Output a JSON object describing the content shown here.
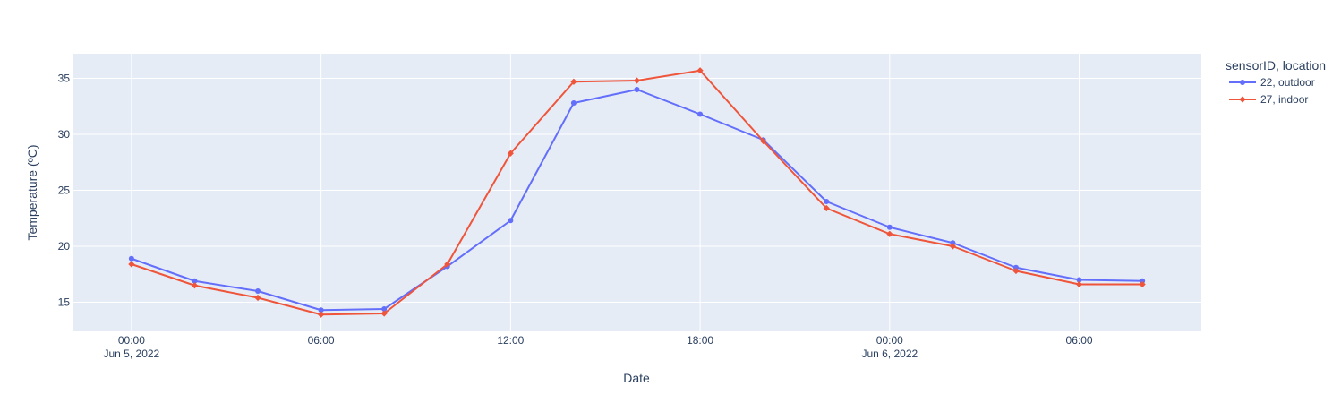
{
  "chart_data": {
    "type": "line",
    "xlabel": "Date",
    "ylabel": "Temperature (ºC)",
    "x": [
      "2022-06-05T00:00",
      "2022-06-05T02:00",
      "2022-06-05T04:00",
      "2022-06-05T06:00",
      "2022-06-05T08:00",
      "2022-06-05T10:00",
      "2022-06-05T12:00",
      "2022-06-05T14:00",
      "2022-06-05T16:00",
      "2022-06-05T18:00",
      "2022-06-05T20:00",
      "2022-06-05T22:00",
      "2022-06-06T00:00",
      "2022-06-06T02:00",
      "2022-06-06T04:00",
      "2022-06-06T06:00",
      "2022-06-06T08:00"
    ],
    "x_ticks": [
      {
        "value": "2022-06-05T00:00",
        "label": "00:00",
        "sublabel": "Jun 5, 2022"
      },
      {
        "value": "2022-06-05T06:00",
        "label": "06:00",
        "sublabel": ""
      },
      {
        "value": "2022-06-05T12:00",
        "label": "12:00",
        "sublabel": ""
      },
      {
        "value": "2022-06-05T18:00",
        "label": "18:00",
        "sublabel": ""
      },
      {
        "value": "2022-06-06T00:00",
        "label": "00:00",
        "sublabel": "Jun 6, 2022"
      },
      {
        "value": "2022-06-06T06:00",
        "label": "06:00",
        "sublabel": ""
      }
    ],
    "xlim": [
      "2022-06-04T22:08",
      "2022-06-06T09:52"
    ],
    "ylim": [
      12.4,
      37.2
    ],
    "y_ticks": [
      15,
      20,
      25,
      30,
      35
    ],
    "grid": true,
    "legend": {
      "title": "sensorID, location",
      "placement": "top-right outside"
    },
    "series": [
      {
        "name": "22, outdoor",
        "color": "#636efa",
        "marker": "circle",
        "values": [
          18.9,
          16.9,
          16.0,
          14.3,
          14.4,
          18.2,
          22.3,
          32.8,
          34.0,
          31.8,
          29.5,
          24.0,
          21.7,
          20.3,
          18.1,
          17.0,
          16.9
        ]
      },
      {
        "name": "27, indoor",
        "color": "#ef553b",
        "marker": "diamond",
        "values": [
          18.4,
          16.5,
          15.4,
          13.9,
          14.0,
          18.4,
          28.3,
          34.7,
          34.8,
          35.7,
          29.4,
          23.4,
          21.1,
          20.0,
          17.8,
          16.6,
          16.6
        ]
      }
    ]
  }
}
